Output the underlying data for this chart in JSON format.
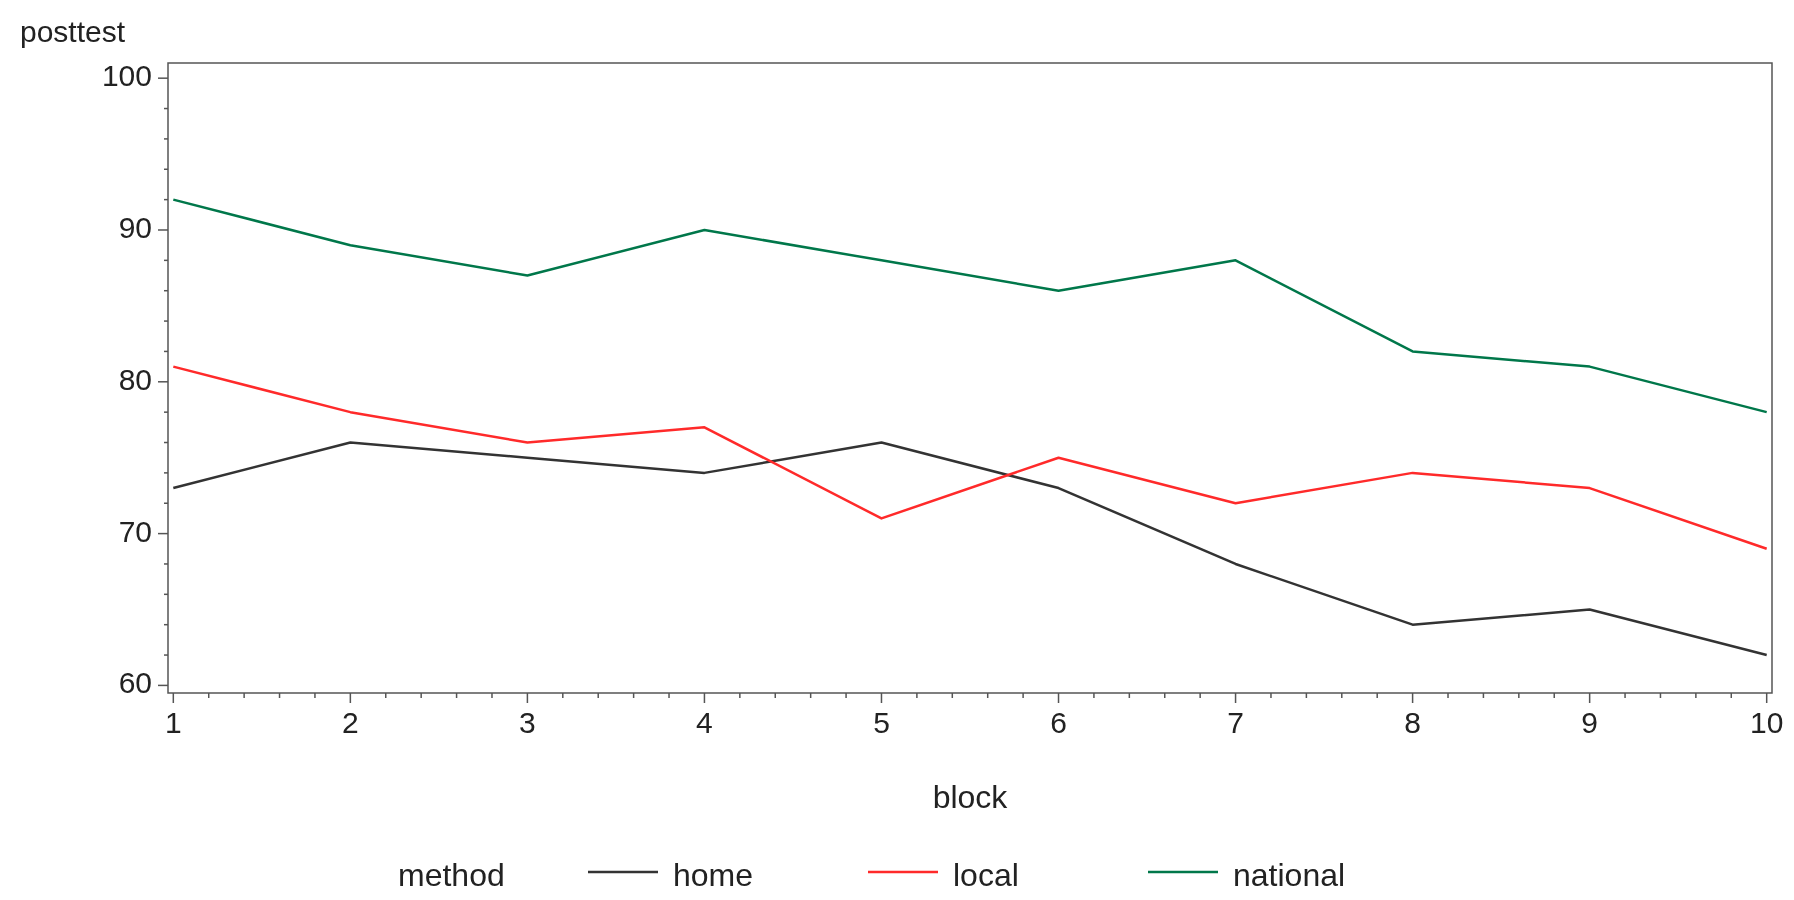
{
  "chart_data": {
    "type": "line",
    "ylabel": "posttest",
    "xlabel": "block",
    "legend_title": "method",
    "legend": "bottom",
    "grid": false,
    "line_style": "solid",
    "x": [
      1,
      2,
      3,
      4,
      5,
      6,
      7,
      8,
      9,
      10
    ],
    "xlim": [
      0.97,
      10.03
    ],
    "xticks": [
      1,
      {
        "value": 1.2,
        "label": null
      },
      {
        "value": 1.4,
        "label": null
      },
      {
        "value": 1.6,
        "label": null
      },
      {
        "value": 1.8,
        "label": null
      },
      2,
      {
        "value": 2.2,
        "label": null
      },
      {
        "value": 2.4,
        "label": null
      },
      {
        "value": 2.6,
        "label": null
      },
      {
        "value": 2.8,
        "label": null
      },
      3,
      {
        "value": 3.2,
        "label": null
      },
      {
        "value": 3.4,
        "label": null
      },
      {
        "value": 3.6,
        "label": null
      },
      {
        "value": 3.8,
        "label": null
      },
      4,
      {
        "value": 4.2,
        "label": null
      },
      {
        "value": 4.4,
        "label": null
      },
      {
        "value": 4.6,
        "label": null
      },
      {
        "value": 4.8,
        "label": null
      },
      5,
      {
        "value": 5.2,
        "label": null
      },
      {
        "value": 5.4,
        "label": null
      },
      {
        "value": 5.6,
        "label": null
      },
      {
        "value": 5.8,
        "label": null
      },
      6,
      {
        "value": 6.2,
        "label": null
      },
      {
        "value": 6.4,
        "label": null
      },
      {
        "value": 6.6,
        "label": null
      },
      {
        "value": 6.8,
        "label": null
      },
      7,
      {
        "value": 7.2,
        "label": null
      },
      {
        "value": 7.4,
        "label": null
      },
      {
        "value": 7.6,
        "label": null
      },
      {
        "value": 7.8,
        "label": null
      },
      8,
      {
        "value": 8.2,
        "label": null
      },
      {
        "value": 8.4,
        "label": null
      },
      {
        "value": 8.6,
        "label": null
      },
      {
        "value": 8.8,
        "label": null
      },
      9,
      {
        "value": 9.2,
        "label": null
      },
      {
        "value": 9.4,
        "label": null
      },
      {
        "value": 9.6,
        "label": null
      },
      {
        "value": 9.8,
        "label": null
      },
      10
    ],
    "ylim": [
      59.5,
      101
    ],
    "yticks": [
      60,
      {
        "value": 62,
        "label": null
      },
      {
        "value": 64,
        "label": null
      },
      {
        "value": 66,
        "label": null
      },
      {
        "value": 68,
        "label": null
      },
      70,
      {
        "value": 72,
        "label": null
      },
      {
        "value": 74,
        "label": null
      },
      {
        "value": 76,
        "label": null
      },
      {
        "value": 78,
        "label": null
      },
      80,
      {
        "value": 82,
        "label": null
      },
      {
        "value": 84,
        "label": null
      },
      {
        "value": 86,
        "label": null
      },
      {
        "value": 88,
        "label": null
      },
      90,
      {
        "value": 92,
        "label": null
      },
      {
        "value": 94,
        "label": null
      },
      {
        "value": 96,
        "label": null
      },
      {
        "value": 98,
        "label": null
      },
      100
    ],
    "series": [
      {
        "name": "home",
        "color": "#333333",
        "values": [
          73,
          76,
          75,
          74,
          76,
          73,
          68,
          64,
          65,
          62
        ]
      },
      {
        "name": "local",
        "color": "#ff2a2a",
        "values": [
          81,
          78,
          76,
          77,
          71,
          75,
          72,
          74,
          73,
          69
        ]
      },
      {
        "name": "national",
        "color": "#00774a",
        "values": [
          92,
          89,
          87,
          90,
          88,
          86,
          88,
          82,
          81,
          78
        ]
      }
    ]
  }
}
